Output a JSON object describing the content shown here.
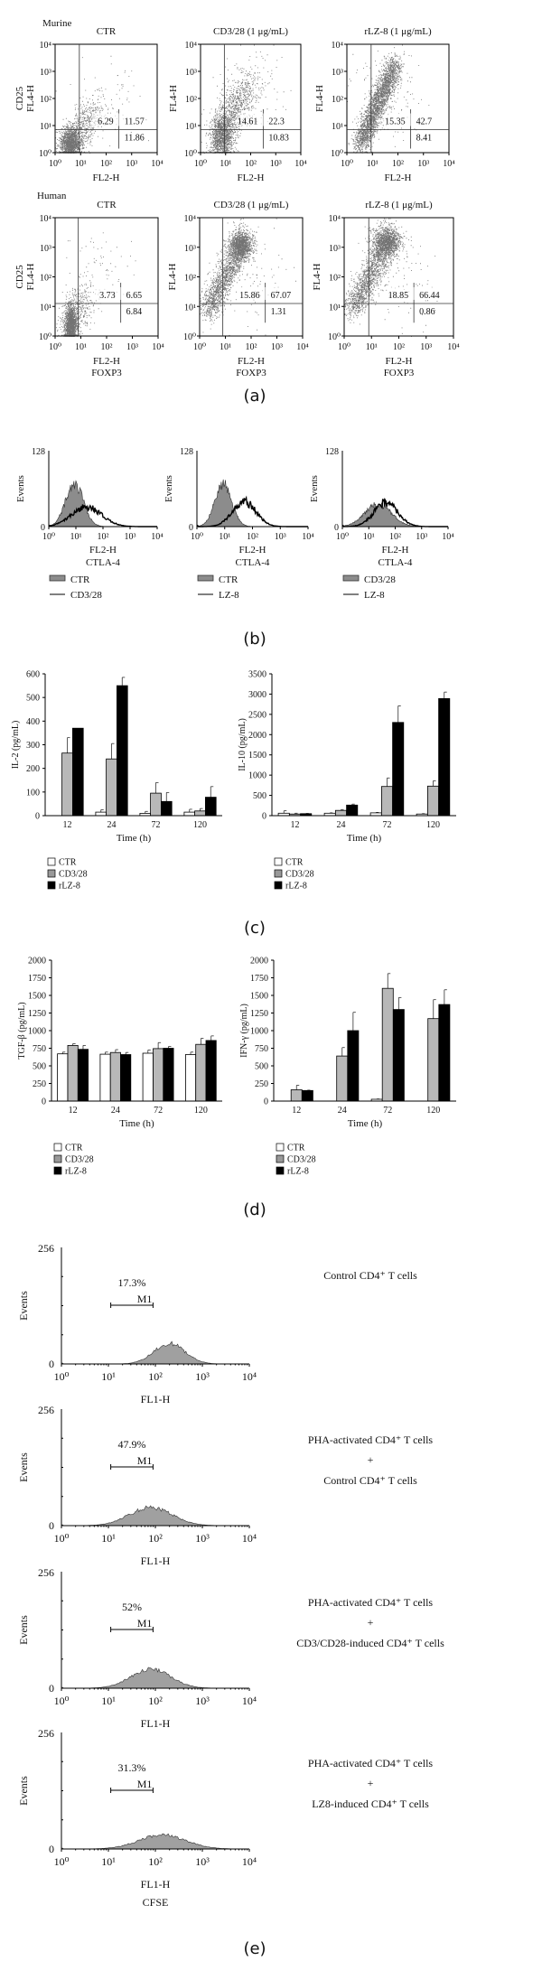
{
  "figure": {
    "panel_labels": {
      "a": "(a)",
      "b": "(b)",
      "c": "(c)",
      "d": "(d)",
      "e": "(e)"
    },
    "group_labels": {
      "murine": "Murine",
      "human": "Human"
    }
  },
  "axes": {
    "log_ticks": [
      "10⁰",
      "10¹",
      "10²",
      "10³",
      "10⁴"
    ]
  },
  "chart_data": [
    {
      "type": "scatter",
      "panel": "a",
      "group": "Murine",
      "title": "CTR",
      "xlabel": [
        "FL2-H"
      ],
      "ylabel": [
        "CD25",
        "FL4-H"
      ],
      "x_scale": "log",
      "y_scale": "log",
      "xlim": [
        1,
        10000
      ],
      "ylim": [
        1,
        10000
      ],
      "quadrant_percent": {
        "upper_left": "6.29",
        "upper_right": "11.57",
        "lower_right": "11.86"
      }
    },
    {
      "type": "scatter",
      "panel": "a",
      "group": "Murine",
      "title": "CD3/28 (1 μg/mL)",
      "xlabel": [
        "FL2-H"
      ],
      "ylabel": [
        "FL4-H"
      ],
      "x_scale": "log",
      "y_scale": "log",
      "xlim": [
        1,
        10000
      ],
      "ylim": [
        1,
        10000
      ],
      "quadrant_percent": {
        "upper_left": "14.61",
        "upper_right": "22.3",
        "lower_right": "10.83"
      }
    },
    {
      "type": "scatter",
      "panel": "a",
      "group": "Murine",
      "title": "rLZ-8 (1 μg/mL)",
      "xlabel": [
        "FL2-H"
      ],
      "ylabel": [
        "FL4-H"
      ],
      "x_scale": "log",
      "y_scale": "log",
      "xlim": [
        1,
        10000
      ],
      "ylim": [
        1,
        10000
      ],
      "quadrant_percent": {
        "upper_left": "15.35",
        "upper_right": "42.7",
        "lower_right": "8.41"
      }
    },
    {
      "type": "scatter",
      "panel": "a",
      "group": "Human",
      "title": "CTR",
      "xlabel": [
        "FL2-H",
        "FOXP3"
      ],
      "ylabel": [
        "CD25",
        "FL4-H"
      ],
      "x_scale": "log",
      "y_scale": "log",
      "xlim": [
        1,
        10000
      ],
      "ylim": [
        1,
        10000
      ],
      "quadrant_percent": {
        "upper_left": "3.73",
        "upper_right": "6.65",
        "lower_right": "6.84"
      }
    },
    {
      "type": "scatter",
      "panel": "a",
      "group": "Human",
      "title": "CD3/28 (1 μg/mL)",
      "xlabel": [
        "FL2-H",
        "FOXP3"
      ],
      "ylabel": [
        "FL4-H"
      ],
      "x_scale": "log",
      "y_scale": "log",
      "xlim": [
        1,
        10000
      ],
      "ylim": [
        1,
        10000
      ],
      "quadrant_percent": {
        "upper_left": "15.86",
        "upper_right": "67.07",
        "lower_right": "1.31"
      }
    },
    {
      "type": "scatter",
      "panel": "a",
      "group": "Human",
      "title": "rLZ-8 (1 μg/mL)",
      "xlabel": [
        "FL2-H",
        "FOXP3"
      ],
      "ylabel": [
        "FL4-H"
      ],
      "x_scale": "log",
      "y_scale": "log",
      "xlim": [
        1,
        10000
      ],
      "ylim": [
        1,
        10000
      ],
      "quadrant_percent": {
        "upper_left": "18.85",
        "upper_right": "66.44",
        "lower_right": "0.86"
      }
    },
    {
      "type": "histogram",
      "panel": "b",
      "xlabel": [
        "FL2-H",
        "CTLA-4"
      ],
      "ylabel": "Events",
      "y_ticks": [
        "128",
        "0"
      ],
      "x_scale": "log",
      "xlim": [
        1,
        10000
      ],
      "ylim": [
        0,
        128
      ],
      "legend_position": "bottom-left",
      "legend": [
        {
          "label": "CTR",
          "style": "filled gray"
        },
        {
          "label": "CD3/28",
          "style": "black line"
        }
      ]
    },
    {
      "type": "histogram",
      "panel": "b",
      "xlabel": [
        "FL2-H",
        "CTLA-4"
      ],
      "ylabel": "Events",
      "y_ticks": [
        "128",
        "0"
      ],
      "x_scale": "log",
      "xlim": [
        1,
        10000
      ],
      "ylim": [
        0,
        128
      ],
      "legend_position": "bottom-left",
      "legend": [
        {
          "label": "CTR",
          "style": "filled gray"
        },
        {
          "label": "LZ-8",
          "style": "black line"
        }
      ]
    },
    {
      "type": "histogram",
      "panel": "b",
      "xlabel": [
        "FL2-H",
        "CTLA-4"
      ],
      "ylabel": "Events",
      "y_ticks": [
        "128",
        "0"
      ],
      "x_scale": "log",
      "xlim": [
        1,
        10000
      ],
      "ylim": [
        0,
        128
      ],
      "legend_position": "bottom-left",
      "legend": [
        {
          "label": "CD3/28",
          "style": "filled gray"
        },
        {
          "label": "LZ-8",
          "style": "black line"
        }
      ]
    },
    {
      "type": "bar",
      "panel": "c",
      "ylabel": "IL-2 (pg/mL)",
      "xlabel": "Time (h)",
      "categories": [
        "12",
        "24",
        "72",
        "120"
      ],
      "ylim": [
        0,
        600
      ],
      "y_ticks": [
        "0",
        "100",
        "200",
        "300",
        "400",
        "500",
        "600"
      ],
      "legend_position": "bottom-left",
      "series": [
        {
          "name": "CTR",
          "color": "#ffffff",
          "values": [
            0,
            15,
            10,
            15
          ],
          "errors": [
            0,
            10,
            8,
            12
          ]
        },
        {
          "name": "CD3/28",
          "color": "#b8b8b8",
          "values": [
            265,
            240,
            95,
            20
          ],
          "errors": [
            65,
            65,
            45,
            10
          ]
        },
        {
          "name": "rLZ-8",
          "color": "#000000",
          "values": [
            370,
            550,
            60,
            78
          ],
          "errors": [
            0,
            35,
            38,
            45
          ]
        }
      ]
    },
    {
      "type": "bar",
      "panel": "c",
      "ylabel": "IL-10 (pg/mL)",
      "xlabel": "Time (h)",
      "categories": [
        "12",
        "24",
        "72",
        "120"
      ],
      "ylim": [
        0,
        3500
      ],
      "y_ticks": [
        "0",
        "500",
        "1000",
        "1500",
        "2000",
        "2500",
        "3000",
        "3500"
      ],
      "legend_position": "bottom-left",
      "series": [
        {
          "name": "CTR",
          "color": "#ffffff",
          "values": [
            60,
            60,
            70,
            40
          ],
          "errors": [
            60,
            10,
            10,
            10
          ]
        },
        {
          "name": "CD3/28",
          "color": "#b8b8b8",
          "values": [
            40,
            130,
            720,
            730
          ],
          "errors": [
            20,
            20,
            210,
            130
          ]
        },
        {
          "name": "rLZ-8",
          "color": "#000000",
          "values": [
            50,
            260,
            2300,
            2890
          ],
          "errors": [
            5,
            25,
            410,
            160
          ]
        }
      ]
    },
    {
      "type": "bar",
      "panel": "d",
      "ylabel": "TGF-β (pg/mL)",
      "xlabel": "Time (h)",
      "categories": [
        "12",
        "24",
        "72",
        "120"
      ],
      "ylim": [
        0,
        2000
      ],
      "y_ticks": [
        "0",
        "250",
        "500",
        "750",
        "1000",
        "1250",
        "1500",
        "1750",
        "2000"
      ],
      "legend_position": "bottom-left",
      "series": [
        {
          "name": "CTR",
          "color": "#ffffff",
          "values": [
            670,
            665,
            680,
            660
          ],
          "errors": [
            25,
            30,
            45,
            35
          ]
        },
        {
          "name": "CD3/28",
          "color": "#b8b8b8",
          "values": [
            790,
            690,
            745,
            805
          ],
          "errors": [
            25,
            40,
            85,
            85
          ]
        },
        {
          "name": "rLZ-8",
          "color": "#000000",
          "values": [
            735,
            660,
            750,
            860
          ],
          "errors": [
            55,
            30,
            25,
            65
          ]
        }
      ]
    },
    {
      "type": "bar",
      "panel": "d",
      "ylabel": "IFN-γ (pg/mL)",
      "xlabel": "Time (h)",
      "categories": [
        "12",
        "24",
        "72",
        "120"
      ],
      "ylim": [
        0,
        2000
      ],
      "y_ticks": [
        "0",
        "250",
        "500",
        "750",
        "1000",
        "1250",
        "1500",
        "1750",
        "2000"
      ],
      "legend_position": "bottom-left",
      "series": [
        {
          "name": "CTR",
          "color": "#ffffff",
          "values": [
            0,
            0,
            25,
            0
          ],
          "errors": [
            0,
            0,
            5,
            0
          ]
        },
        {
          "name": "CD3/28",
          "color": "#b8b8b8",
          "values": [
            160,
            640,
            1600,
            1170
          ],
          "errors": [
            65,
            120,
            210,
            270
          ]
        },
        {
          "name": "rLZ-8",
          "color": "#000000",
          "values": [
            150,
            1000,
            1300,
            1370
          ],
          "errors": [
            5,
            260,
            170,
            210
          ]
        }
      ]
    },
    {
      "type": "histogram",
      "panel": "e",
      "xlabel": [
        "FL1-H"
      ],
      "ylabel": "Events",
      "y_ticks": [
        "256",
        "0"
      ],
      "x_scale": "log",
      "xlim": [
        1,
        10000
      ],
      "ylim": [
        0,
        256
      ],
      "gate": {
        "label": "M1",
        "percent": "17.3%"
      },
      "description": [
        "Control CD4⁺ T cells"
      ]
    },
    {
      "type": "histogram",
      "panel": "e",
      "xlabel": [
        "FL1-H"
      ],
      "ylabel": "Events",
      "y_ticks": [
        "256",
        "0"
      ],
      "x_scale": "log",
      "xlim": [
        1,
        10000
      ],
      "ylim": [
        0,
        256
      ],
      "gate": {
        "label": "M1",
        "percent": "47.9%"
      },
      "description": [
        "PHA-activated CD4⁺ T cells",
        "+",
        "Control CD4⁺ T cells"
      ]
    },
    {
      "type": "histogram",
      "panel": "e",
      "xlabel": [
        "FL1-H"
      ],
      "ylabel": "Events",
      "y_ticks": [
        "256",
        "0"
      ],
      "x_scale": "log",
      "xlim": [
        1,
        10000
      ],
      "ylim": [
        0,
        256
      ],
      "gate": {
        "label": "M1",
        "percent": "52%"
      },
      "description": [
        "PHA-activated CD4⁺ T cells",
        "+",
        "CD3/CD28-induced CD4⁺ T cells"
      ]
    },
    {
      "type": "histogram",
      "panel": "e",
      "xlabel": [
        "FL1-H",
        "CFSE"
      ],
      "ylabel": "Events",
      "y_ticks": [
        "256",
        "0"
      ],
      "x_scale": "log",
      "xlim": [
        1,
        10000
      ],
      "ylim": [
        0,
        256
      ],
      "gate": {
        "label": "M1",
        "percent": "31.3%"
      },
      "description": [
        "PHA-activated CD4⁺ T cells",
        "+",
        "LZ8-induced CD4⁺ T cells"
      ]
    }
  ]
}
